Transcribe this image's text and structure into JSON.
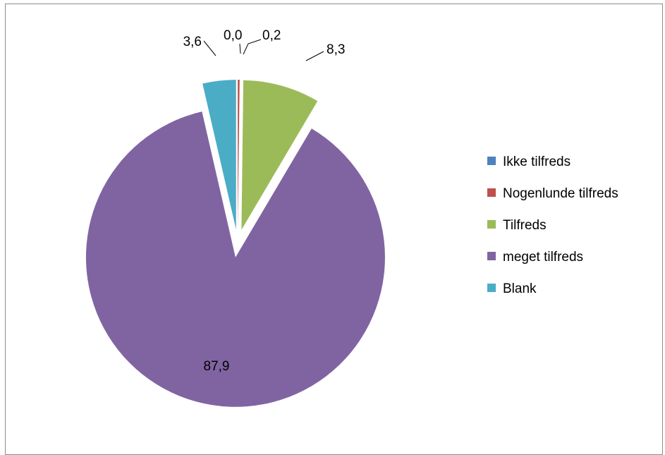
{
  "chart_data": {
    "type": "pie",
    "title": "",
    "categories": [
      "Ikke tilfreds",
      "Nogenlunde tilfreds",
      "Tilfreds",
      "meget tilfreds",
      "Blank"
    ],
    "values": [
      0.0,
      0.2,
      8.3,
      87.9,
      3.6
    ],
    "value_labels": [
      "0,0",
      "0,2",
      "8,3",
      "87,9",
      "3,6"
    ],
    "colors": [
      "#4f81bd",
      "#c0504d",
      "#9bbb59",
      "#8064a2",
      "#4bacc6"
    ],
    "exploded": true,
    "legend_position": "right"
  }
}
